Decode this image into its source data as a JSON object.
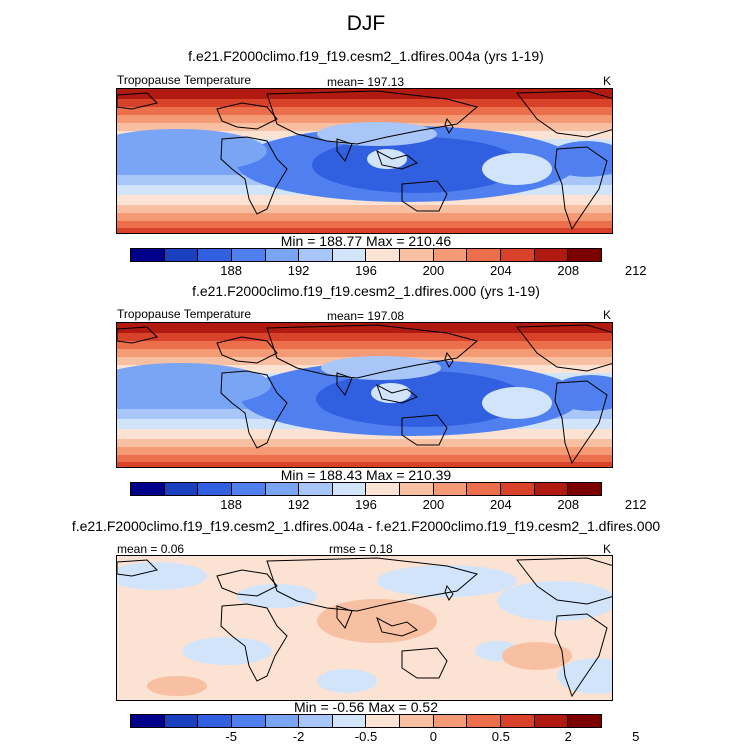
{
  "figure": {
    "season": "DJF",
    "units": "K"
  },
  "colors": {
    "temp_levels": [
      "#00008b",
      "#1a3fbf",
      "#3060e0",
      "#5080ef",
      "#7aa4f4",
      "#a8c6f7",
      "#d2e4fa",
      "#fbe2d2",
      "#f8c0a2",
      "#f49b76",
      "#ec6f4c",
      "#d8412a",
      "#b01a10",
      "#7d0000"
    ],
    "diff_levels": [
      "#00008b",
      "#1a3fbf",
      "#3060e0",
      "#5080ef",
      "#7aa4f4",
      "#a8c6f7",
      "#d2e4fa",
      "#fbe2d2",
      "#f8c0a2",
      "#f49b76",
      "#ec6f4c",
      "#d8412a",
      "#b01a10",
      "#7d0000"
    ],
    "land_outline": "#000000"
  },
  "chart_data": [
    {
      "type": "heatmap",
      "title": "f.e21.F2000climo.f19_f19.cesm2_1.dfires.004a (yrs 1-19)",
      "variable": "Tropopause Temperature",
      "stat_left": "",
      "stat_center": "mean= 197.13",
      "units": "K",
      "minmax": "Min = 188.77 Max = 210.46",
      "min": 188.77,
      "max": 210.46,
      "mean": 197.13,
      "colorbar_ticks": [
        "188",
        "192",
        "196",
        "200",
        "204",
        "208",
        "212"
      ],
      "colorbar_levels": 14
    },
    {
      "type": "heatmap",
      "title": "f.e21.F2000climo.f19_f19.cesm2_1.dfires.000 (yrs 1-19)",
      "variable": "Tropopause Temperature",
      "stat_left": "",
      "stat_center": "mean= 197.08",
      "units": "K",
      "minmax": "Min = 188.43 Max = 210.39",
      "min": 188.43,
      "max": 210.39,
      "mean": 197.08,
      "colorbar_ticks": [
        "188",
        "192",
        "196",
        "200",
        "204",
        "208",
        "212"
      ],
      "colorbar_levels": 14
    },
    {
      "type": "heatmap",
      "title": "f.e21.F2000climo.f19_f19.cesm2_1.dfires.004a - f.e21.F2000climo.f19_f19.cesm2_1.dfires.000",
      "variable": "",
      "stat_left": "mean =   0.06",
      "stat_center": "rmse =   0.18",
      "units": "K",
      "minmax": "Min =  -0.56 Max =   0.52",
      "min": -0.56,
      "max": 0.52,
      "mean": 0.06,
      "rmse": 0.18,
      "colorbar_ticks": [
        "-5",
        "-2",
        "-0.5",
        "0",
        "0.5",
        "2",
        "5"
      ],
      "colorbar_levels": 14
    }
  ]
}
